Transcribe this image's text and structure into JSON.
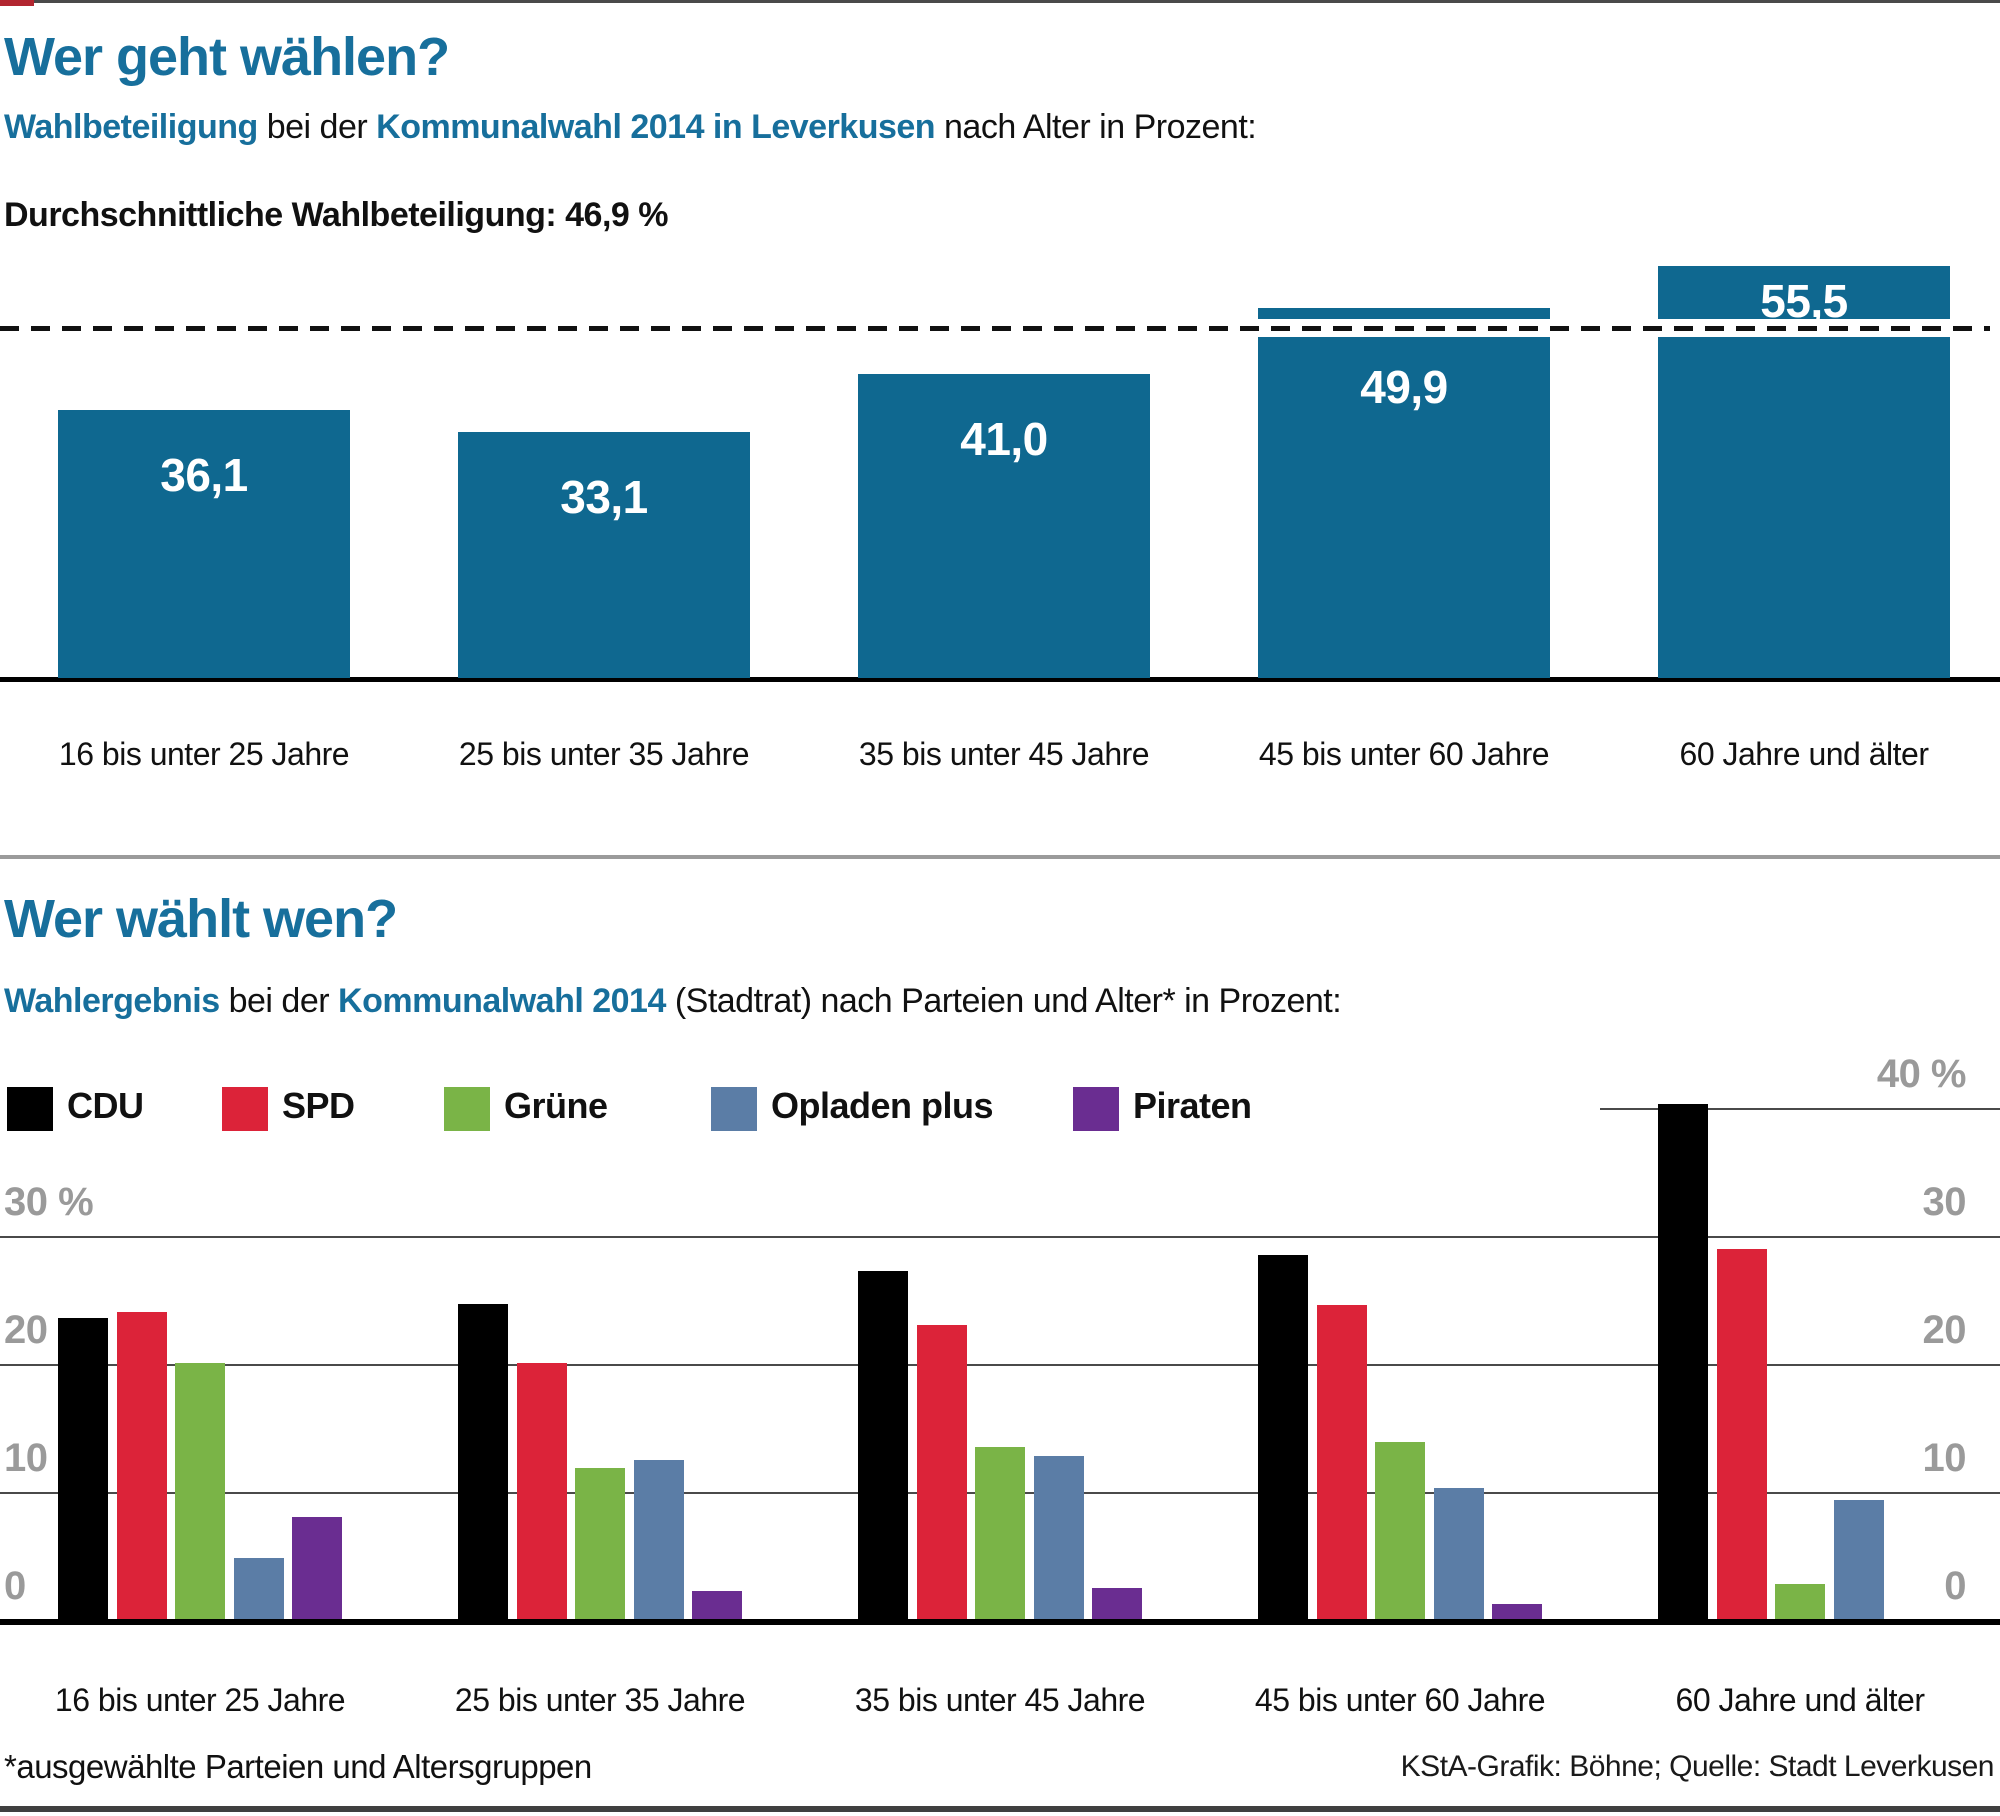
{
  "accent_color": "#176f9c",
  "section1": {
    "title": "Wer geht wählen?",
    "subtitle": {
      "part1": "Wahlbeteiligung",
      "part2": " bei der ",
      "part3": "Kommunalwahl 2014 in Leverkusen",
      "part4": " nach Alter in Prozent:"
    },
    "average_label": "Durchschnittliche Wahlbeteiligung: 46,9 %"
  },
  "section2": {
    "title": "Wer wählt wen?",
    "subtitle": {
      "part1": "Wahlergebnis",
      "part2": " bei der ",
      "part3": "Kommunalwahl 2014",
      "part4": " (Stadtrat) nach Parteien und Alter* in Prozent:"
    }
  },
  "footer": {
    "note": "*ausgewählte Parteien und Altersgruppen",
    "credit": "KStA-Grafik: Böhne; Quelle: Stadt Leverkusen"
  },
  "chart_data": [
    {
      "type": "bar",
      "title": "Wahlbeteiligung bei der Kommunalwahl 2014 in Leverkusen nach Alter in Prozent",
      "categories": [
        "16 bis unter 25 Jahre",
        "25 bis unter 35 Jahre",
        "35 bis unter 45 Jahre",
        "45 bis unter 60 Jahre",
        "60 Jahre und älter"
      ],
      "values": [
        36.1,
        33.1,
        41.0,
        49.9,
        55.5
      ],
      "value_labels": [
        "36,1",
        "33,1",
        "41,0",
        "49,9",
        "55,5"
      ],
      "average": 46.9,
      "average_label": "Durchschnittliche Wahlbeteiligung: 46,9 %",
      "bar_color": "#0f6890",
      "ylim": [
        0,
        60
      ],
      "unit": "%",
      "grid": false
    },
    {
      "type": "bar",
      "title": "Wahlergebnis bei der Kommunalwahl 2014 (Stadtrat) nach Parteien und Alter in Prozent",
      "categories": [
        "16 bis unter 25 Jahre",
        "25 bis unter 35 Jahre",
        "35 bis unter 45 Jahre",
        "45 bis unter 60 Jahre",
        "60 Jahre und älter"
      ],
      "series": [
        {
          "name": "CDU",
          "color": "#000000",
          "values": [
            23.5,
            24.6,
            27.2,
            28.4,
            40.2
          ]
        },
        {
          "name": "SPD",
          "color": "#dc2339",
          "values": [
            24.0,
            20.0,
            23.0,
            24.5,
            28.9
          ]
        },
        {
          "name": "Grüne",
          "color": "#7ab447",
          "values": [
            20.0,
            11.8,
            13.4,
            13.8,
            2.7
          ]
        },
        {
          "name": "Opladen plus",
          "color": "#5b7da6",
          "values": [
            4.8,
            12.4,
            12.7,
            10.2,
            9.3
          ]
        },
        {
          "name": "Piraten",
          "color": "#6a2d91",
          "values": [
            8.0,
            2.2,
            2.4,
            1.2,
            0
          ]
        }
      ],
      "ylim": [
        0,
        40
      ],
      "yticks_left": [
        "30 %",
        "20",
        "10",
        "0"
      ],
      "yticks_right": [
        "40 %",
        "30",
        "20",
        "10",
        "0"
      ],
      "unit": "%",
      "grid": true,
      "legend_position": "top"
    }
  ]
}
